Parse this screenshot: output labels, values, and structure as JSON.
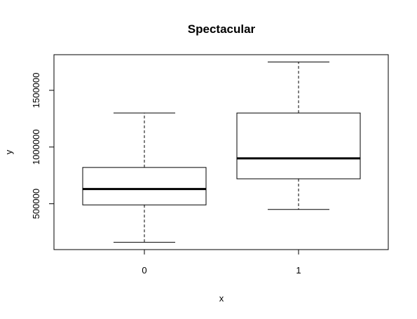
{
  "chart_data": {
    "type": "boxplot",
    "title": "Spectacular",
    "xlabel": "x",
    "ylabel": "y",
    "categories": [
      "0",
      "1"
    ],
    "boxes": [
      {
        "category": "0",
        "whisker_low": 160000,
        "q1": 490000,
        "median": 630000,
        "q3": 820000,
        "whisker_high": 1300000
      },
      {
        "category": "1",
        "whisker_low": 450000,
        "q1": 720000,
        "median": 900000,
        "q3": 1300000,
        "whisker_high": 1750000
      }
    ],
    "yticks": [
      500000,
      1000000,
      1500000
    ],
    "ytick_labels": [
      "500000",
      "1000000",
      "1500000"
    ],
    "ylim": [
      96000,
      1814000
    ],
    "grid": false
  }
}
